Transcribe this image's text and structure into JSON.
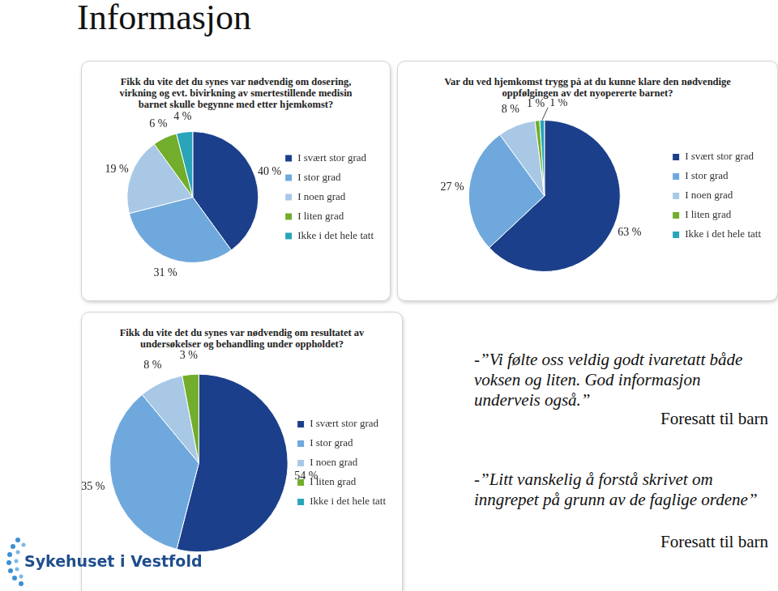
{
  "title": "Informasjon",
  "chart_data": [
    {
      "type": "pie",
      "title": "Fikk du vite det du synes var nødvendig om dosering, virkning og evt. bivirkning av smertestillende medisin barnet skulle begynne med etter hjemkomst?",
      "categories": [
        "I svært stor grad",
        "I stor grad",
        "I noen grad",
        "I liten grad",
        "Ikke i det hele tatt"
      ],
      "values": [
        40,
        31,
        19,
        6,
        4
      ],
      "value_labels": [
        "40 %",
        "31 %",
        "19 %",
        "6 %",
        "4 %"
      ],
      "colors": [
        "#1b3f8b",
        "#6fa8dc",
        "#a8c8e6",
        "#72ad2b",
        "#29a4b8"
      ],
      "data_labels": true,
      "legend": "right"
    },
    {
      "type": "pie",
      "title": "Var du ved hjemkomst trygg på at du kunne klare den nødvendige oppfølgingen av det nyopererte barnet?",
      "categories": [
        "I svært stor grad",
        "I stor grad",
        "I noen grad",
        "I liten grad",
        "Ikke i det hele tatt"
      ],
      "values": [
        63,
        27,
        8,
        1,
        1
      ],
      "value_labels": [
        "63 %",
        "27 %",
        "8 %",
        "1 %",
        "1 %"
      ],
      "colors": [
        "#1b3f8b",
        "#6fa8dc",
        "#a8c8e6",
        "#72ad2b",
        "#29a4b8"
      ],
      "data_labels": true,
      "legend": "right"
    },
    {
      "type": "pie",
      "title": "Fikk du vite det du synes var nødvendig om resultatet av undersøkelser og behandling under oppholdet?",
      "categories": [
        "I svært stor grad",
        "I stor grad",
        "I noen grad",
        "I liten grad",
        "Ikke i det hele tatt"
      ],
      "values": [
        54,
        35,
        8,
        3,
        0
      ],
      "value_labels": [
        "54 %",
        "35 %",
        "8 %",
        "3 %",
        null
      ],
      "colors": [
        "#1b3f8b",
        "#6fa8dc",
        "#a8c8e6",
        "#72ad2b",
        "#29a4b8"
      ],
      "data_labels": true,
      "legend": "right"
    }
  ],
  "quotes": [
    {
      "text": "-”Vi følte oss veldig godt ivaretatt både voksen og liten. God informasjon underveis også.”",
      "source": "Foresatt til barn"
    },
    {
      "text": "-”Litt vanskelig å forstå skrivet om inngrepet på grunn av de faglige ordene”",
      "source": "Foresatt til barn"
    }
  ],
  "logo": "Sykehuset i Vestfold"
}
